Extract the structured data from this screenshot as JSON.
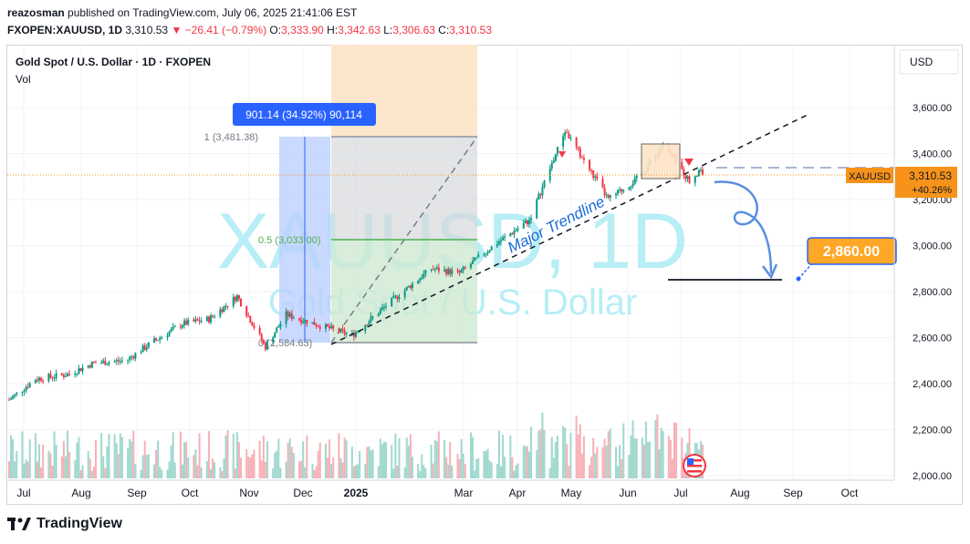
{
  "header": {
    "author": "reazosman",
    "published_text": "published on TradingView.com, July 06, 2025 21:41:06 EST",
    "symbol": "FXOPEN:XAUUSD, 1D",
    "last": "3,310.53",
    "change": "−26.41 (−0.79%)",
    "open": "3,333.90",
    "high": "3,342.63",
    "low": "3,306.63",
    "close": "3,310.53"
  },
  "legend": {
    "title": "Gold Spot / U.S. Dollar · 1D · FXOPEN",
    "vol": "Vol"
  },
  "watermark": {
    "main": "XAUUSD, 1D",
    "sub": "Gold Spot / U.S. Dollar"
  },
  "price_scale": {
    "currency": "USD",
    "ticks": [
      "3,600.00",
      "3,400.00",
      "3,200.00",
      "3,000.00",
      "2,800.00",
      "2,600.00",
      "2,400.00",
      "2,200.00",
      "2,000.00"
    ],
    "symbol_tag": "XAUUSD",
    "price_tag": "3,310.53",
    "pct_tag": "+40.26%"
  },
  "time_scale": {
    "labels": [
      "Jul",
      "Aug",
      "Sep",
      "Oct",
      "Nov",
      "Dec",
      "2025",
      "Mar",
      "Apr",
      "May",
      "Jun",
      "Jul",
      "Aug",
      "Sep",
      "Oct"
    ]
  },
  "annotations": {
    "measure_label": "901.14 (34.92%) 90,114",
    "fib_1": "1 (3,481.38)",
    "fib_05": "0.5 (3,033.00)",
    "fib_0": "0 (2,584.63)",
    "trendline_label": "Major Trendline",
    "target_label": "2,860.00"
  },
  "colors": {
    "up": "#089981",
    "down": "#f23645",
    "target_bg": "#ffa726",
    "price_tag_bg": "#f7931a",
    "measure_bg": "#2962ff",
    "watermark": "#b8eef5"
  },
  "branding": "TradingView",
  "chart_data": {
    "type": "candlestick",
    "title": "Gold Spot / U.S. Dollar · 1D · FXOPEN",
    "ylabel": "USD",
    "ylim": [
      2000,
      3700
    ],
    "x_range": [
      "2024-07",
      "2025-10"
    ],
    "series": [
      {
        "name": "XAUUSD",
        "points": [
          [
            "2024-07-01",
            2330
          ],
          [
            "2024-07-15",
            2420
          ],
          [
            "2024-08-01",
            2440
          ],
          [
            "2024-08-15",
            2490
          ],
          [
            "2024-09-01",
            2500
          ],
          [
            "2024-09-15",
            2580
          ],
          [
            "2024-10-01",
            2660
          ],
          [
            "2024-10-15",
            2680
          ],
          [
            "2024-10-30",
            2780
          ],
          [
            "2024-11-14",
            2560
          ],
          [
            "2024-11-25",
            2700
          ],
          [
            "2024-12-10",
            2660
          ],
          [
            "2024-12-30",
            2610
          ],
          [
            "2025-01-20",
            2760
          ],
          [
            "2025-02-10",
            2900
          ],
          [
            "2025-02-25",
            2880
          ],
          [
            "2025-03-15",
            3000
          ],
          [
            "2025-04-03",
            3110
          ],
          [
            "2025-04-22",
            3500
          ],
          [
            "2025-05-15",
            3200
          ],
          [
            "2025-06-01",
            3300
          ],
          [
            "2025-06-13",
            3440
          ],
          [
            "2025-06-27",
            3280
          ],
          [
            "2025-07-03",
            3336
          ],
          [
            "2025-07-04",
            3310.53
          ]
        ]
      }
    ],
    "target": 2860.0
  }
}
